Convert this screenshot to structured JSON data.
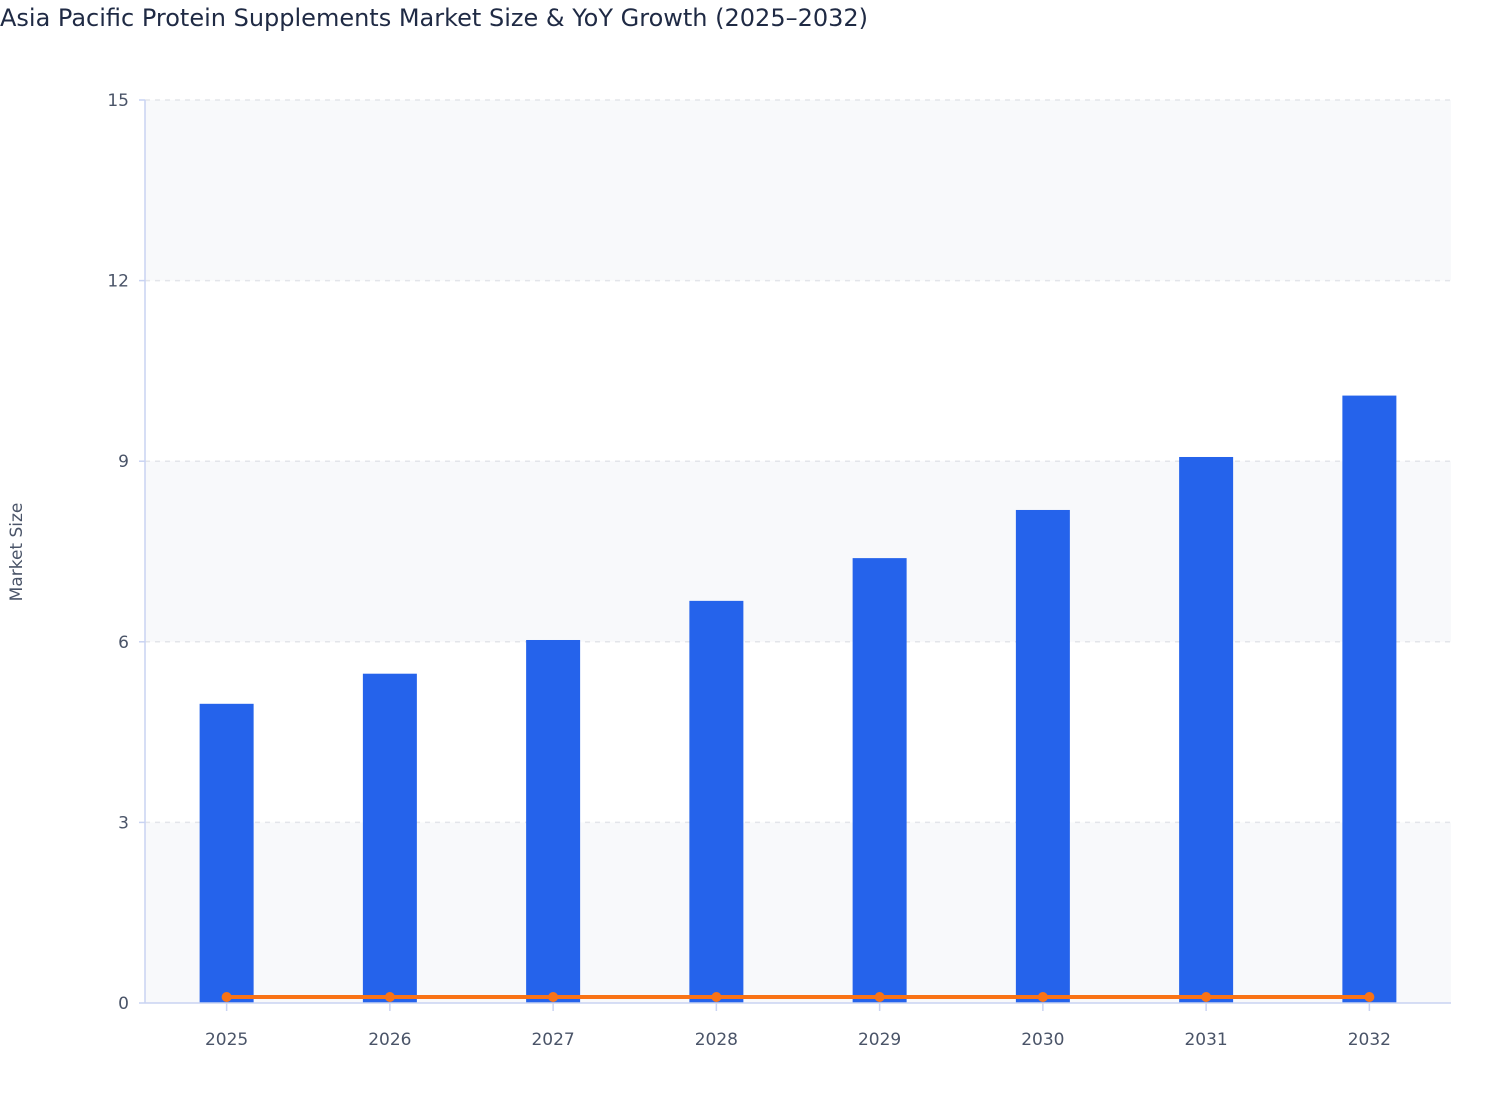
{
  "chart_data": {
    "type": "bar",
    "title": "Asia Pacific Protein Supplements Market Size & YoY Growth (2025–2032)",
    "xlabel": "",
    "ylabel": "Market Size",
    "ylim": [
      0,
      15
    ],
    "yticks": [
      "0",
      "3",
      "6",
      "9",
      "12",
      "15"
    ],
    "categories": [
      "2025",
      "2026",
      "2027",
      "2028",
      "2029",
      "2030",
      "2031",
      "2032"
    ],
    "grid": true,
    "series": [
      {
        "type": "bar",
        "values": [
          4.97,
          5.47,
          6.03,
          6.68,
          7.39,
          8.19,
          9.07,
          10.09
        ],
        "color": "#2563eb"
      },
      {
        "type": "line",
        "values": [
          0.1,
          0.1,
          0.1,
          0.1,
          0.1,
          0.1,
          0.1,
          0.1
        ],
        "color": "#f97316"
      }
    ]
  }
}
